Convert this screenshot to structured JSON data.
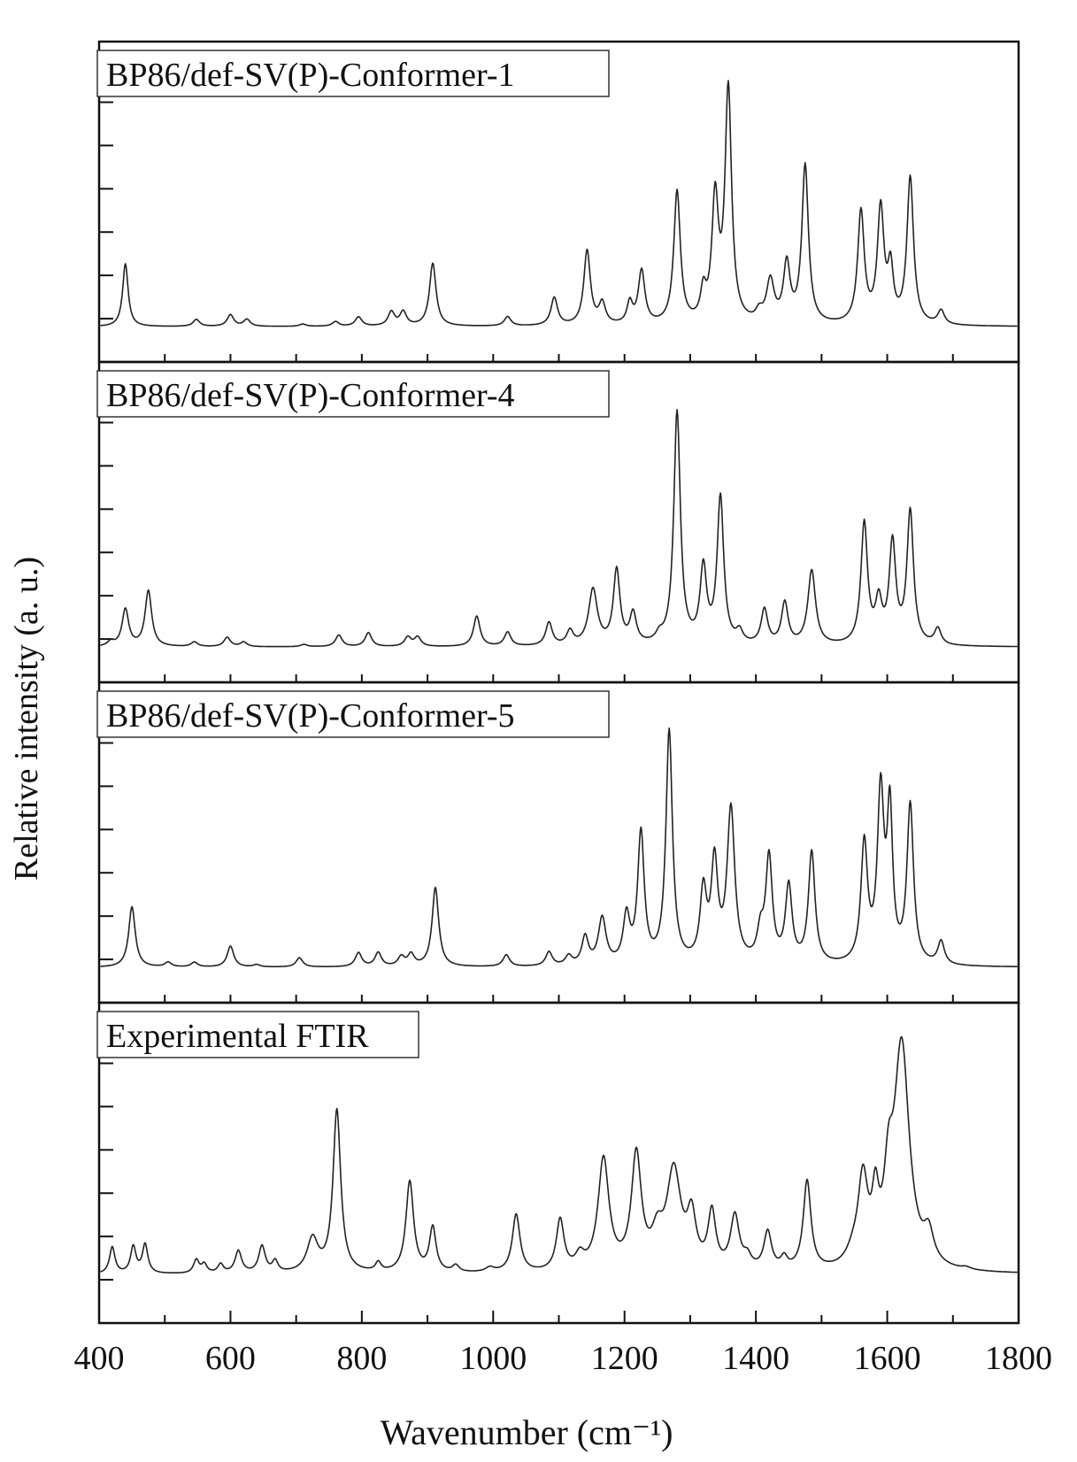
{
  "chart_data": {
    "type": "line",
    "xlabel": "Wavenumber (cm⁻¹)",
    "ylabel": "Relative intensity (a. u.)",
    "xlim": [
      400,
      1800
    ],
    "x_ticks": [
      "400",
      "600",
      "800",
      "1000",
      "1200",
      "1400",
      "1600",
      "1800"
    ],
    "grid": false,
    "line_color": "#222222",
    "panels": [
      {
        "name": "BP86/def-SV(P)-Conformer-1",
        "baseline": 0.0,
        "ymax": 1.1,
        "peaks": [
          [
            440,
            0.27,
            5
          ],
          [
            548,
            0.03,
            6
          ],
          [
            600,
            0.05,
            6
          ],
          [
            625,
            0.03,
            6
          ],
          [
            710,
            0.01,
            6
          ],
          [
            760,
            0.02,
            6
          ],
          [
            795,
            0.04,
            6
          ],
          [
            845,
            0.06,
            6
          ],
          [
            863,
            0.06,
            6
          ],
          [
            908,
            0.27,
            6
          ],
          [
            1022,
            0.04,
            6
          ],
          [
            1093,
            0.12,
            6
          ],
          [
            1143,
            0.32,
            6
          ],
          [
            1166,
            0.09,
            6
          ],
          [
            1208,
            0.09,
            5
          ],
          [
            1226,
            0.23,
            6
          ],
          [
            1280,
            0.57,
            6
          ],
          [
            1320,
            0.12,
            5
          ],
          [
            1338,
            0.52,
            6
          ],
          [
            1358,
            1.0,
            6
          ],
          [
            1405,
            0.04,
            6
          ],
          [
            1422,
            0.18,
            7
          ],
          [
            1447,
            0.25,
            6
          ],
          [
            1475,
            0.68,
            6
          ],
          [
            1560,
            0.48,
            6
          ],
          [
            1590,
            0.49,
            6
          ],
          [
            1605,
            0.22,
            5
          ],
          [
            1635,
            0.63,
            6
          ],
          [
            1682,
            0.06,
            6
          ]
        ]
      },
      {
        "name": "BP86/def-SV(P)-Conformer-4",
        "baseline": 0.0,
        "ymax": 1.1,
        "peaks": [
          [
            418,
            0.02,
            6
          ],
          [
            440,
            0.16,
            6
          ],
          [
            475,
            0.24,
            6
          ],
          [
            545,
            0.02,
            6
          ],
          [
            595,
            0.04,
            6
          ],
          [
            620,
            0.02,
            6
          ],
          [
            712,
            0.01,
            6
          ],
          [
            765,
            0.05,
            6
          ],
          [
            810,
            0.06,
            6
          ],
          [
            870,
            0.04,
            6
          ],
          [
            885,
            0.04,
            6
          ],
          [
            975,
            0.13,
            6
          ],
          [
            1022,
            0.06,
            6
          ],
          [
            1085,
            0.1,
            6
          ],
          [
            1117,
            0.06,
            6
          ],
          [
            1152,
            0.24,
            8
          ],
          [
            1188,
            0.32,
            6
          ],
          [
            1213,
            0.13,
            6
          ],
          [
            1253,
            0.03,
            6
          ],
          [
            1280,
            1.0,
            6
          ],
          [
            1320,
            0.32,
            6
          ],
          [
            1346,
            0.63,
            6
          ],
          [
            1375,
            0.05,
            6
          ],
          [
            1413,
            0.15,
            6
          ],
          [
            1444,
            0.18,
            6
          ],
          [
            1485,
            0.32,
            7
          ],
          [
            1565,
            0.52,
            6
          ],
          [
            1587,
            0.17,
            6
          ],
          [
            1608,
            0.43,
            6
          ],
          [
            1635,
            0.57,
            6
          ],
          [
            1677,
            0.07,
            6
          ]
        ]
      },
      {
        "name": "BP86/def-SV(P)-Conformer-5",
        "baseline": 0.0,
        "ymax": 1.1,
        "peaks": [
          [
            450,
            0.26,
            6
          ],
          [
            505,
            0.02,
            6
          ],
          [
            545,
            0.02,
            6
          ],
          [
            600,
            0.09,
            6
          ],
          [
            640,
            0.01,
            6
          ],
          [
            705,
            0.04,
            6
          ],
          [
            795,
            0.06,
            6
          ],
          [
            825,
            0.06,
            6
          ],
          [
            860,
            0.04,
            6
          ],
          [
            875,
            0.05,
            6
          ],
          [
            912,
            0.34,
            6
          ],
          [
            1020,
            0.05,
            6
          ],
          [
            1085,
            0.06,
            6
          ],
          [
            1115,
            0.04,
            6
          ],
          [
            1140,
            0.12,
            6
          ],
          [
            1166,
            0.2,
            7
          ],
          [
            1203,
            0.2,
            6
          ],
          [
            1225,
            0.56,
            6
          ],
          [
            1268,
            1.0,
            6
          ],
          [
            1320,
            0.3,
            6
          ],
          [
            1337,
            0.42,
            6
          ],
          [
            1362,
            0.66,
            7
          ],
          [
            1407,
            0.12,
            6
          ],
          [
            1420,
            0.45,
            6
          ],
          [
            1450,
            0.33,
            6
          ],
          [
            1485,
            0.48,
            6
          ],
          [
            1565,
            0.51,
            6
          ],
          [
            1590,
            0.72,
            6
          ],
          [
            1604,
            0.63,
            5
          ],
          [
            1635,
            0.68,
            6
          ],
          [
            1682,
            0.1,
            6
          ]
        ]
      },
      {
        "name": "Experimental FTIR",
        "baseline": 0.06,
        "ymax": 1.15,
        "peaks": [
          [
            420,
            0.12,
            5
          ],
          [
            452,
            0.12,
            5
          ],
          [
            470,
            0.13,
            5
          ],
          [
            548,
            0.06,
            5
          ],
          [
            560,
            0.04,
            5
          ],
          [
            585,
            0.04,
            5
          ],
          [
            612,
            0.1,
            6
          ],
          [
            648,
            0.12,
            6
          ],
          [
            668,
            0.05,
            5
          ],
          [
            725,
            0.15,
            10
          ],
          [
            762,
            0.73,
            7
          ],
          [
            825,
            0.04,
            5
          ],
          [
            873,
            0.41,
            7
          ],
          [
            908,
            0.2,
            6
          ],
          [
            943,
            0.03,
            6
          ],
          [
            995,
            0.02,
            8
          ],
          [
            1035,
            0.26,
            7
          ],
          [
            1102,
            0.23,
            7
          ],
          [
            1132,
            0.06,
            8
          ],
          [
            1168,
            0.5,
            10
          ],
          [
            1218,
            0.51,
            9
          ],
          [
            1250,
            0.13,
            10
          ],
          [
            1275,
            0.44,
            13
          ],
          [
            1302,
            0.22,
            8
          ],
          [
            1333,
            0.25,
            7
          ],
          [
            1368,
            0.24,
            8
          ],
          [
            1387,
            0.05,
            7
          ],
          [
            1418,
            0.17,
            7
          ],
          [
            1443,
            0.05,
            6
          ],
          [
            1478,
            0.4,
            7
          ],
          [
            1548,
            0.05,
            12
          ],
          [
            1563,
            0.38,
            9
          ],
          [
            1582,
            0.25,
            6
          ],
          [
            1602,
            0.3,
            8
          ],
          [
            1622,
            1.0,
            14
          ],
          [
            1663,
            0.13,
            9
          ],
          [
            1720,
            0.01,
            8
          ]
        ]
      }
    ]
  }
}
